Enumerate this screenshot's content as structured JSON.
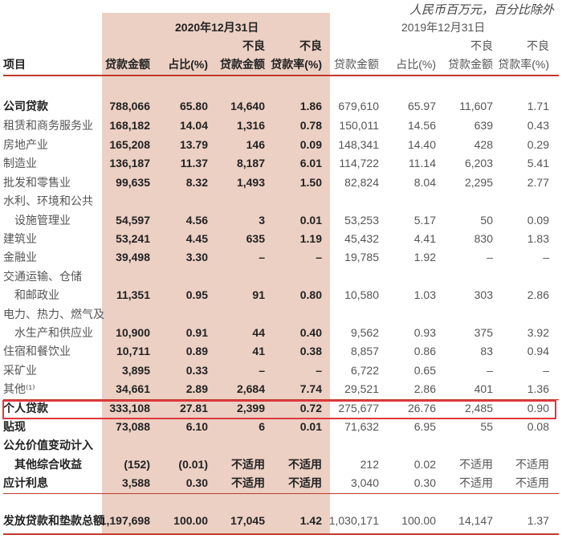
{
  "unit_note": "人民币百万元，百分比除外",
  "header": {
    "year_2020": "2020年12月31日",
    "year_2019": "2019年12月31日",
    "col_item": "项目",
    "npl_top": "不良",
    "cols": [
      "贷款金额",
      "占比(%)",
      "贷款金额",
      "贷款率(%)"
    ]
  },
  "rows": [
    {
      "label": "公司贷款",
      "bold": true,
      "v2020": [
        "788,066",
        "65.80",
        "14,640",
        "1.86"
      ],
      "v2019": [
        "679,610",
        "65.97",
        "11,607",
        "1.71"
      ]
    },
    {
      "label": "租赁和商务服务业",
      "v2020": [
        "168,182",
        "14.04",
        "1,316",
        "0.78"
      ],
      "v2019": [
        "150,011",
        "14.56",
        "639",
        "0.43"
      ]
    },
    {
      "label": "房地产业",
      "v2020": [
        "165,208",
        "13.79",
        "146",
        "0.09"
      ],
      "v2019": [
        "148,341",
        "14.40",
        "428",
        "0.29"
      ]
    },
    {
      "label": "制造业",
      "v2020": [
        "136,187",
        "11.37",
        "8,187",
        "6.01"
      ],
      "v2019": [
        "114,722",
        "11.14",
        "6,203",
        "5.41"
      ]
    },
    {
      "label": "批发和零售业",
      "v2020": [
        "99,635",
        "8.32",
        "1,493",
        "1.50"
      ],
      "v2019": [
        "82,824",
        "8.04",
        "2,295",
        "2.77"
      ]
    },
    {
      "label": "水利、环境和公共"
    },
    {
      "label": "设施管理业",
      "indent": true,
      "v2020": [
        "54,597",
        "4.56",
        "3",
        "0.01"
      ],
      "v2019": [
        "53,253",
        "5.17",
        "50",
        "0.09"
      ]
    },
    {
      "label": "建筑业",
      "v2020": [
        "53,241",
        "4.45",
        "635",
        "1.19"
      ],
      "v2019": [
        "45,432",
        "4.41",
        "830",
        "1.83"
      ]
    },
    {
      "label": "金融业",
      "v2020": [
        "39,498",
        "3.30",
        "–",
        "–"
      ],
      "v2019": [
        "19,785",
        "1.92",
        "–",
        "–"
      ]
    },
    {
      "label": "交通运输、仓储"
    },
    {
      "label": "和邮政业",
      "indent": true,
      "v2020": [
        "11,351",
        "0.95",
        "91",
        "0.80"
      ],
      "v2019": [
        "10,580",
        "1.03",
        "303",
        "2.86"
      ]
    },
    {
      "label": "电力、热力、燃气及"
    },
    {
      "label": "水生产和供应业",
      "indent": true,
      "v2020": [
        "10,900",
        "0.91",
        "44",
        "0.40"
      ],
      "v2019": [
        "9,562",
        "0.93",
        "375",
        "3.92"
      ]
    },
    {
      "label": "住宿和餐饮业",
      "v2020": [
        "10,711",
        "0.89",
        "41",
        "0.38"
      ],
      "v2019": [
        "8,857",
        "0.86",
        "83",
        "0.94"
      ]
    },
    {
      "label": "采矿业",
      "v2020": [
        "3,895",
        "0.33",
        "–",
        "–"
      ],
      "v2019": [
        "6,722",
        "0.65",
        "–",
        "–"
      ]
    },
    {
      "label": "其他⁽¹⁾",
      "v2020": [
        "34,661",
        "2.89",
        "2,684",
        "7.74"
      ],
      "v2019": [
        "29,521",
        "2.86",
        "401",
        "1.36"
      ]
    },
    {
      "label": "个人贷款",
      "bold": true,
      "v2020": [
        "333,108",
        "27.81",
        "2,399",
        "0.72"
      ],
      "v2019": [
        "275,677",
        "26.76",
        "2,485",
        "0.90"
      ]
    },
    {
      "label": "贴现",
      "bold": true,
      "v2020": [
        "73,088",
        "6.10",
        "6",
        "0.01"
      ],
      "v2019": [
        "71,632",
        "6.95",
        "55",
        "0.08"
      ]
    },
    {
      "label": "公允价值变动计入",
      "bold": true
    },
    {
      "label": "其他综合收益",
      "bold": true,
      "indent": true,
      "v2020": [
        "(152)",
        "(0.01)",
        "不适用",
        "不适用"
      ],
      "v2019": [
        "212",
        "0.02",
        "不适用",
        "不适用"
      ]
    },
    {
      "label": "应计利息",
      "bold": true,
      "v2020": [
        "3,588",
        "0.30",
        "不适用",
        "不适用"
      ],
      "v2019": [
        "3,040",
        "0.30",
        "不适用",
        "不适用"
      ]
    },
    {
      "label": "发放贷款和垫款总额",
      "bold": true,
      "total": true,
      "v2020": [
        "1,197,698",
        "100.00",
        "17,045",
        "1.42"
      ],
      "v2019": [
        "1,030,171",
        "100.00",
        "14,147",
        "1.37"
      ]
    }
  ],
  "colors": {
    "shade": "#ecd0c4",
    "rule": "#c0392b",
    "highlight_box": "#e0383f"
  }
}
